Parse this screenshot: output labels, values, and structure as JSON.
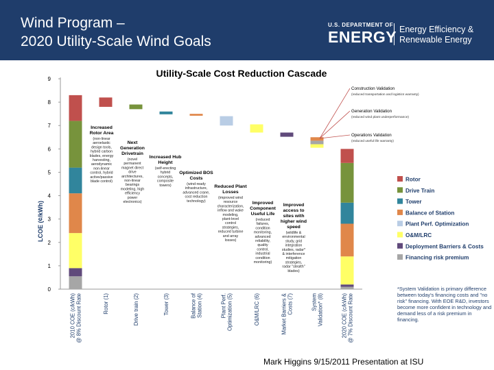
{
  "header": {
    "title_line1": "Wind Program –",
    "title_line2": "2020 Utility-Scale Wind Goals",
    "doe_dept": "U.S. DEPARTMENT OF",
    "doe_energy": "ENERGY",
    "eere_line1": "Energy Efficiency &",
    "eere_line2": "Renewable Energy"
  },
  "footer": {
    "credit": "Mark Higgins 9/15/2011 Presentation at ISU"
  },
  "chart_data": {
    "type": "bar",
    "title": "Utility-Scale Cost Reduction Cascade",
    "ylabel": "LCOE (¢/kWh)",
    "ylim": [
      0,
      9
    ],
    "yticks": [
      0,
      1,
      2,
      3,
      4,
      5,
      6,
      7,
      8,
      9
    ],
    "categories": [
      "2010 COE (c/kWh) @ 8% Discount Rate",
      "Rotor (1)",
      "Drive train (2)",
      "Tower (3)",
      "Balance of Station (4)",
      "Plant Perf. Optimization (5)",
      "O&M/LRC (6)",
      "Market Barriers & Costs (7)",
      "System Validation* (8)",
      "2020 COE (c/kWh) @ 7% Discount Rate"
    ],
    "components": [
      {
        "key": "rotor",
        "name": "Rotor",
        "color": "#c0504d"
      },
      {
        "key": "drivetrain",
        "name": "Drive Train",
        "color": "#77933c"
      },
      {
        "key": "tower",
        "name": "Tower",
        "color": "#31859c"
      },
      {
        "key": "bos",
        "name": "Balance of Station",
        "color": "#e0874a"
      },
      {
        "key": "ppo",
        "name": "Plant Perf. Optimization",
        "color": "#b9cde5"
      },
      {
        "key": "om",
        "name": "O&M/LRC",
        "color": "#ffff66"
      },
      {
        "key": "market",
        "name": "Deployment Barriers & Costs",
        "color": "#604a7b"
      },
      {
        "key": "risk",
        "name": "Financing risk premium",
        "color": "#a6a6a6"
      }
    ],
    "start_stack": [
      {
        "key": "risk",
        "value": 0.55
      },
      {
        "key": "market",
        "value": 0.35
      },
      {
        "key": "om",
        "value": 1.5
      },
      {
        "key": "ppo",
        "value": 0.0
      },
      {
        "key": "bos",
        "value": 1.7
      },
      {
        "key": "tower",
        "value": 1.1
      },
      {
        "key": "drivetrain",
        "value": 2.0
      },
      {
        "key": "rotor",
        "value": 1.1
      }
    ],
    "end_stack": [
      {
        "key": "risk",
        "value": 0.1
      },
      {
        "key": "market",
        "value": 0.1
      },
      {
        "key": "om",
        "value": 1.2
      },
      {
        "key": "ppo",
        "value": 0.0
      },
      {
        "key": "bos",
        "value": 1.4
      },
      {
        "key": "tower",
        "value": 0.9
      },
      {
        "key": "drivetrain",
        "value": 1.7
      },
      {
        "key": "rotor",
        "value": 0.6
      }
    ],
    "steps": [
      {
        "key": "rotor",
        "from": 8.2,
        "to": 7.8
      },
      {
        "key": "drivetrain",
        "from": 7.9,
        "to": 7.7
      },
      {
        "key": "tower",
        "from": 7.6,
        "to": 7.48
      },
      {
        "key": "bos",
        "from": 7.5,
        "to": 7.42
      },
      {
        "key": "ppo",
        "from": 7.4,
        "to": 7.0
      },
      {
        "key": "om",
        "from": 7.05,
        "to": 6.7
      },
      {
        "key": "market",
        "from": 6.7,
        "to": 6.52
      },
      {
        "key": "validation_stack",
        "parts": [
          {
            "key": "bos",
            "from": 6.5,
            "to": 6.35
          },
          {
            "key": "risk",
            "from": 6.35,
            "to": 6.2
          },
          {
            "key": "om",
            "from": 6.2,
            "to": 6.05
          }
        ]
      }
    ],
    "annotations": [
      {
        "text": "Increased Rotor Area",
        "sub": "(non-linear aeroelastic design tools, hybrid carbon blades, energy harvesting, aerodynamic non-linear control, hybrid active/passive blade control)"
      },
      {
        "text": "Next Generation Drivetrain",
        "sub": "(novel permanent magnet direct drive architectures, non-linear bearings modeling, high efficiency power electronics)"
      },
      {
        "text": "Increased Hub Height",
        "sub": "(self-erecting hybrid concepts, composite towers)"
      },
      {
        "text": "Optimized BOS Costs",
        "sub": "(wind-ready infrastructure, advanced crane, cost reduction technology)"
      },
      {
        "text": "Reduced Plant Losses",
        "sub": "(improved wind resource characterization, inflow and wake modeling, plant-level control strategies, reduced turbine and array losses)"
      },
      {
        "text": "Improved Component Useful Life",
        "sub": "(reduced failures, condition monitoring, advanced reliability, quality control, industrial condition monitoring)"
      },
      {
        "text": "Improved access to sites with higher wind speed",
        "sub": "(wildlife & environmental study, grid integration studies, radar* & interference mitigation strategies, radar \"stealth\" blades)"
      },
      {
        "text": "Construction Validation",
        "sub": "(reduced transportation and logistics warranty)"
      },
      {
        "text": "Generation Validation",
        "sub": "(reduced wind plant underperformance)"
      },
      {
        "text": "Operations Validation",
        "sub": "(reduced useful life warranty)"
      }
    ],
    "footnote": "*System Validation is primary difference between today's financing costs and \"no risk\" financing. With EOE R&D, investors become more confident in technology and demand less of a risk premium in financing."
  }
}
